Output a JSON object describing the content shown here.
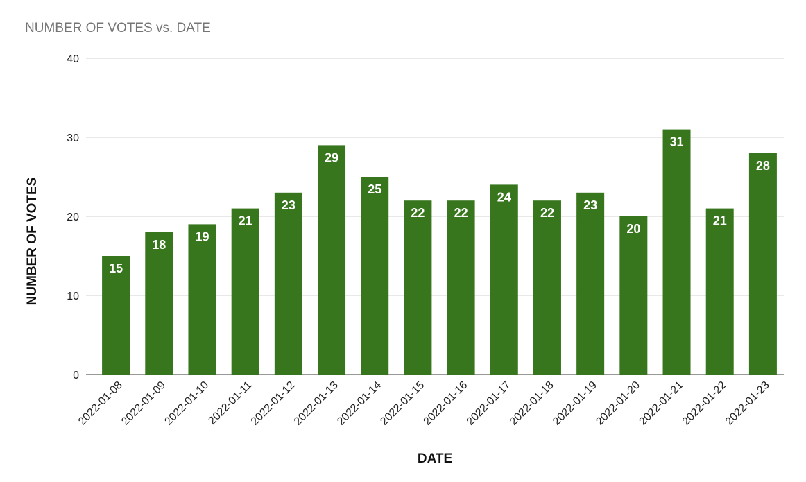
{
  "colors": {
    "bar": "#38761d",
    "grid": "#d0d0d0",
    "title": "#757575"
  },
  "chart_data": {
    "type": "bar",
    "title": "NUMBER OF VOTES vs. DATE",
    "xlabel": "DATE",
    "ylabel": "NUMBER OF VOTES",
    "ylim": [
      0,
      40
    ],
    "yticks": [
      0,
      10,
      20,
      30,
      40
    ],
    "grid": true,
    "legend": "none",
    "categories": [
      "2022-01-08",
      "2022-01-09",
      "2022-01-10",
      "2022-01-11",
      "2022-01-12",
      "2022-01-13",
      "2022-01-14",
      "2022-01-15",
      "2022-01-16",
      "2022-01-17",
      "2022-01-18",
      "2022-01-19",
      "2022-01-20",
      "2022-01-21",
      "2022-01-22",
      "2022-01-23"
    ],
    "values": [
      15,
      18,
      19,
      21,
      23,
      29,
      25,
      22,
      22,
      24,
      22,
      23,
      20,
      31,
      21,
      28
    ]
  }
}
